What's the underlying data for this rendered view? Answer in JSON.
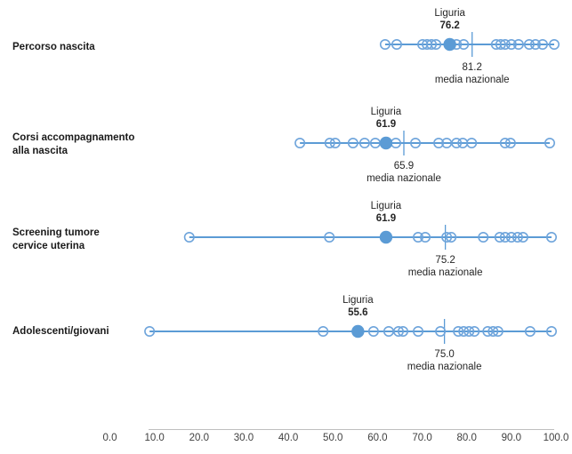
{
  "chart_data": {
    "type": "scatter",
    "subtype": "dot-plot",
    "title": "",
    "axis": {
      "min": 0,
      "max": 100,
      "tick_step": 10,
      "tick_labels": [
        "0.0",
        "10.0",
        "20.0",
        "30.0",
        "40.0",
        "50.0",
        "60.0",
        "70.0",
        "80.0",
        "90.0",
        "100.0"
      ]
    },
    "colors": {
      "accent": "#5B9BD5",
      "open_circle": "#6EA4DB",
      "axis_line": "#BFBFBF",
      "tick_text": "#404040",
      "label_text": "#1a1a1a"
    },
    "rows": [
      {
        "label_lines": [
          "Percorso nascita"
        ],
        "liguria_label": "Liguria",
        "liguria_value": 76.2,
        "liguria_value_label": "76.2",
        "media_value": 81.2,
        "media_value_label": "81.2",
        "media_caption": "media nazionale",
        "region_values": [
          61.7,
          64.3,
          70.1,
          71.1,
          72.1,
          73.1,
          77.7,
          79.3,
          86.6,
          87.6,
          88.6,
          90.0,
          91.6,
          94.0,
          95.4,
          97.0,
          99.6
        ]
      },
      {
        "label_lines": [
          "Corsi accompagnamento",
          "alla nascita"
        ],
        "liguria_label": "Liguria",
        "liguria_value": 61.9,
        "liguria_value_label": "61.9",
        "media_value": 65.9,
        "media_value_label": "65.9",
        "media_caption": "media nazionale",
        "region_values": [
          42.6,
          49.3,
          50.5,
          54.5,
          57.1,
          59.5,
          64.1,
          68.5,
          73.7,
          75.5,
          77.7,
          79.1,
          81.1,
          88.6,
          89.8,
          98.6
        ]
      },
      {
        "label_lines": [
          "Screening tumore",
          "cervice uterina"
        ],
        "liguria_label": "Liguria",
        "liguria_value": 61.9,
        "liguria_value_label": "61.9",
        "media_value": 75.2,
        "media_value_label": "75.2",
        "media_caption": "media nazionale",
        "region_values": [
          17.8,
          49.2,
          69.1,
          70.7,
          75.5,
          76.5,
          83.7,
          87.4,
          88.6,
          90.0,
          91.4,
          92.6,
          99.0
        ]
      },
      {
        "label_lines": [
          "Adolescenti/giovani"
        ],
        "liguria_label": "Liguria",
        "liguria_value": 55.6,
        "liguria_value_label": "55.6",
        "media_value": 75.0,
        "media_value_label": "75.0",
        "media_caption": "media nazionale",
        "region_values": [
          8.9,
          47.8,
          59.1,
          62.5,
          64.7,
          65.7,
          69.1,
          74.1,
          78.1,
          79.3,
          80.5,
          81.7,
          84.7,
          85.9,
          87.0,
          94.2,
          99.0
        ]
      }
    ]
  }
}
